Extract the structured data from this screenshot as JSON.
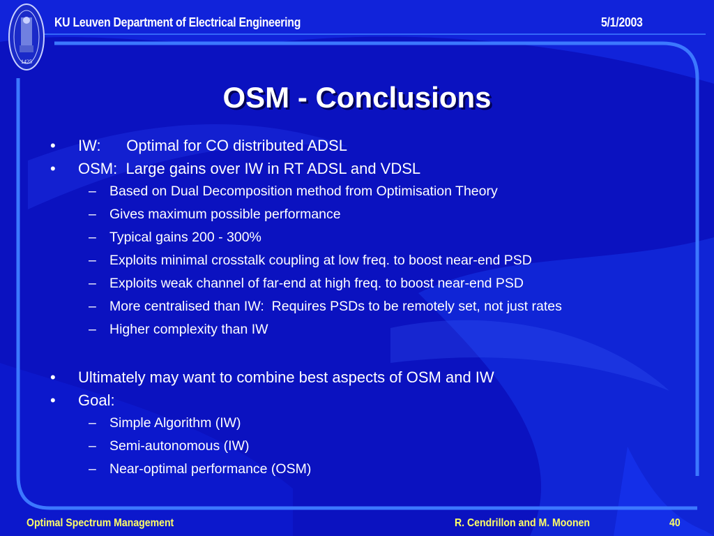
{
  "header": {
    "institution": "KU Leuven Department of Electrical Engineering",
    "date": "5/1/2003"
  },
  "logo": {
    "year": "1425"
  },
  "slide": {
    "title": "OSM - Conclusions",
    "items": [
      {
        "level": 1,
        "text": "IW:      Optimal for CO distributed ADSL"
      },
      {
        "level": 1,
        "text": "OSM:  Large gains over IW in RT ADSL and VDSL"
      },
      {
        "level": 2,
        "text": "Based on Dual Decomposition method from Optimisation Theory"
      },
      {
        "level": 2,
        "text": "Gives maximum possible performance"
      },
      {
        "level": 2,
        "text": "Typical gains 200 - 300%"
      },
      {
        "level": 2,
        "text": "Exploits minimal crosstalk coupling at low freq. to boost near-end PSD"
      },
      {
        "level": 2,
        "text": "Exploits weak channel of far-end at high freq. to boost near-end PSD"
      },
      {
        "level": 2,
        "text": "More centralised than IW:  Requires PSDs to be remotely set, not just rates"
      },
      {
        "level": 2,
        "text": "Higher complexity than IW"
      },
      {
        "level": 1,
        "text": "Ultimately may want to combine best aspects of OSM and IW"
      },
      {
        "level": 1,
        "text": "Goal:"
      },
      {
        "level": 2,
        "text": "Simple Algorithm (IW)"
      },
      {
        "level": 2,
        "text": "Semi-autonomous (IW)"
      },
      {
        "level": 2,
        "text": "Near-optimal performance (OSM)"
      }
    ]
  },
  "footer": {
    "presentation": "Optimal Spectrum Management",
    "authors": "R. Cendrillon and M. Moonen",
    "page": "40"
  },
  "bullets": {
    "level1": "•",
    "level2": "–"
  },
  "colors": {
    "background": "#0a14c8",
    "frame": "#3c78ff",
    "footer_text": "#ffff66"
  }
}
